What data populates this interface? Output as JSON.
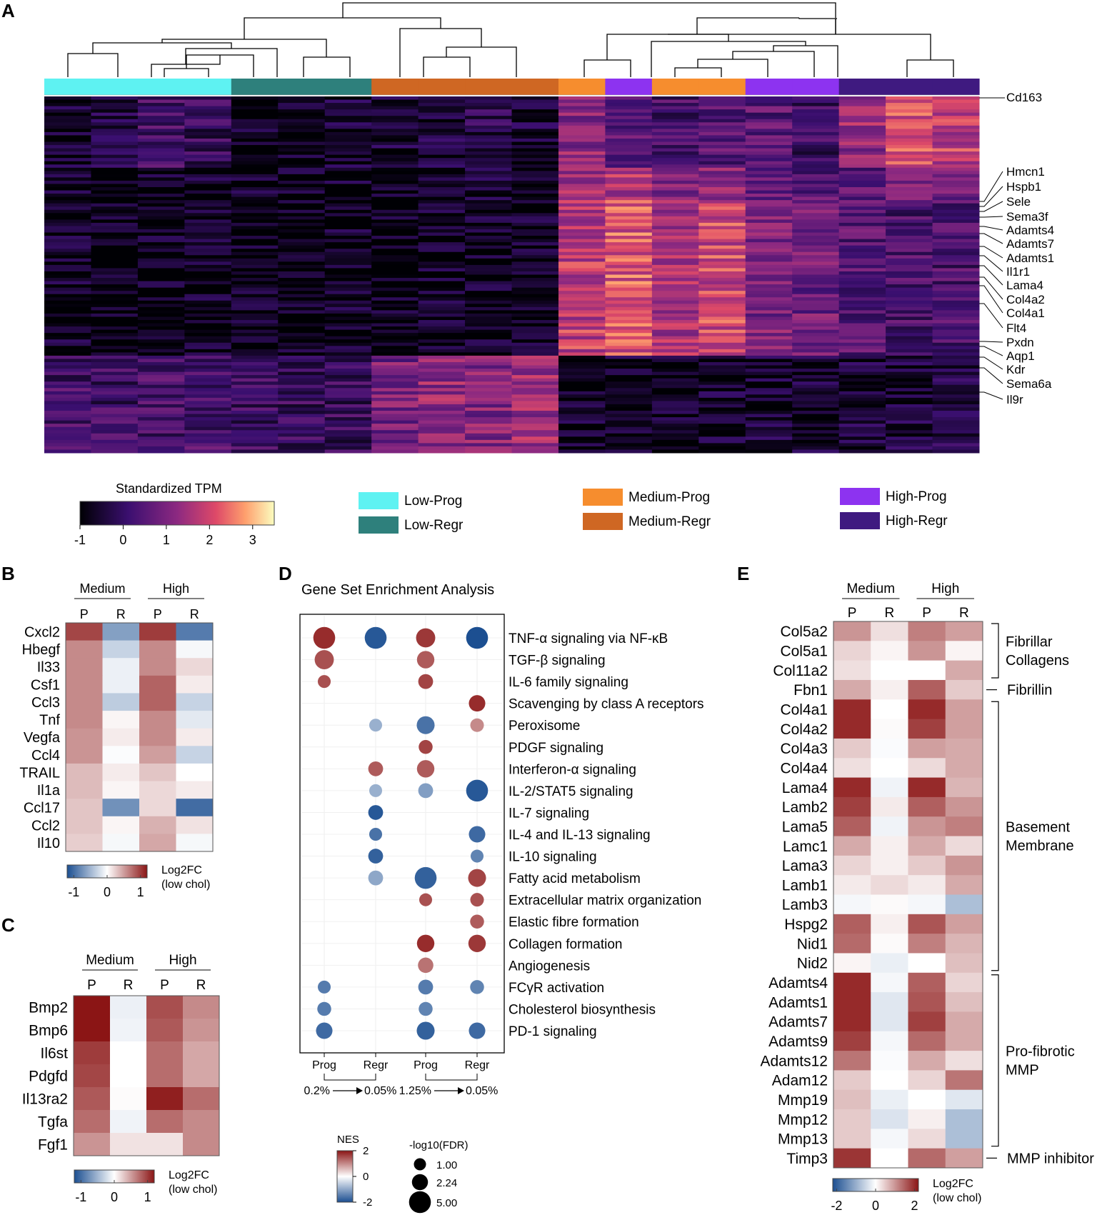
{
  "panels": {
    "A": "A",
    "B": "B",
    "C": "C",
    "D": "D",
    "E": "E"
  },
  "chart_data": [
    {
      "panel": "A",
      "type": "heatmap",
      "title": "",
      "colorbar": {
        "title": "Standardized TPM",
        "ticks": [
          "-1",
          "0",
          "1",
          "2",
          "3"
        ],
        "range": [
          -1,
          3.5
        ]
      },
      "groups": [
        {
          "name": "Low-Prog",
          "color": "#5ef2f2"
        },
        {
          "name": "Low-Regr",
          "color": "#2e807c"
        },
        {
          "name": "Medium-Prog",
          "color": "#f68d2e"
        },
        {
          "name": "Medium-Regr",
          "color": "#cf6723"
        },
        {
          "name": "High-Prog",
          "color": "#8d33f0"
        },
        {
          "name": "High-Regr",
          "color": "#3f1a80"
        }
      ],
      "sample_groups": [
        "Low-Prog",
        "Low-Prog",
        "Low-Prog",
        "Low-Prog",
        "Low-Regr",
        "Low-Regr",
        "Low-Regr",
        "Medium-Regr",
        "Medium-Regr",
        "Medium-Regr",
        "Medium-Regr",
        "Medium-Prog",
        "High-Prog",
        "Medium-Prog",
        "Medium-Prog",
        "High-Prog",
        "High-Prog",
        "High-Regr",
        "High-Regr",
        "High-Regr"
      ],
      "gene_labels": [
        "Cd163",
        "Hmcn1",
        "Hspb1",
        "Sele",
        "Sema3f",
        "Adamts4",
        "Adamts7",
        "Adamts1",
        "Il1r1",
        "Lama4",
        "Col4a2",
        "Col4a1",
        "Flt4",
        "Pxdn",
        "Aqp1",
        "Kdr",
        "Sema6a",
        "Il9r"
      ],
      "row_blocks": [
        {
          "rows": 22,
          "values": [
            -0.6,
            -0.2,
            0.2,
            0.0,
            -0.7,
            -0.7,
            -0.5,
            -0.5,
            -0.4,
            -0.2,
            -0.4,
            1.2,
            0.6,
            0.2,
            0.5,
            0.5,
            0.1,
            1.3,
            2.2,
            1.8
          ]
        },
        {
          "rows": 10,
          "values": [
            -0.7,
            -0.7,
            -0.6,
            -0.6,
            -0.7,
            -0.8,
            -0.7,
            -0.6,
            -0.6,
            -0.6,
            -0.6,
            1.4,
            1.6,
            0.9,
            1.2,
            0.7,
            0.5,
            0.6,
            0.9,
            0.9
          ]
        },
        {
          "rows": 48,
          "values": [
            -0.7,
            -0.8,
            -0.7,
            -0.7,
            -0.8,
            -0.8,
            -0.7,
            -0.8,
            -0.7,
            -0.7,
            -0.7,
            1.8,
            2.2,
            1.6,
            2.0,
            1.0,
            0.8,
            0.5,
            0.3,
            0.3
          ]
        },
        {
          "rows": 30,
          "values": [
            0.2,
            0.1,
            0.2,
            0.3,
            0.1,
            0.0,
            0.0,
            0.9,
            1.3,
            1.1,
            1.4,
            -0.7,
            -0.6,
            -0.7,
            -0.6,
            -0.5,
            -0.6,
            -0.5,
            -0.4,
            -0.3
          ]
        }
      ],
      "dendrogram": "hierarchical clustering of 20 samples"
    },
    {
      "panel": "B",
      "type": "heatmap",
      "column_groups": [
        "Medium",
        "High"
      ],
      "columns": [
        "P",
        "R",
        "P",
        "R"
      ],
      "rows": [
        "Cxcl2",
        "Hbegf",
        "Il33",
        "Csf1",
        "Ccl3",
        "Tnf",
        "Vegfa",
        "Ccl4",
        "TRAIL",
        "Il1a",
        "Ccl17",
        "Ccl2",
        "Il10"
      ],
      "values": [
        [
          0.95,
          -0.65,
          1.0,
          -0.9
        ],
        [
          0.6,
          -0.3,
          0.6,
          -0.05
        ],
        [
          0.6,
          -0.1,
          0.6,
          0.2
        ],
        [
          0.6,
          -0.1,
          0.8,
          0.1
        ],
        [
          0.6,
          -0.35,
          0.8,
          -0.3
        ],
        [
          0.6,
          0.05,
          0.6,
          -0.15
        ],
        [
          0.55,
          0.1,
          0.6,
          0.1
        ],
        [
          0.55,
          -0.02,
          0.5,
          -0.3
        ],
        [
          0.35,
          0.1,
          0.3,
          0.0
        ],
        [
          0.35,
          0.05,
          0.2,
          0.1
        ],
        [
          0.3,
          -0.75,
          0.2,
          -1.0
        ],
        [
          0.3,
          0.05,
          0.4,
          0.15
        ],
        [
          0.25,
          -0.05,
          0.45,
          -0.05
        ]
      ],
      "colorbar": {
        "title": "Log2FC",
        "subtitle": "(low chol)",
        "ticks": [
          "-1",
          "0",
          "1"
        ],
        "range": [
          -1.2,
          1.2
        ]
      }
    },
    {
      "panel": "C",
      "type": "heatmap",
      "column_groups": [
        "Medium",
        "High"
      ],
      "columns": [
        "P",
        "R",
        "P",
        "R"
      ],
      "rows": [
        "Bmp2",
        "Bmp6",
        "Il6st",
        "Pdgfd",
        "Il13ra2",
        "Tgfa",
        "Fgf1"
      ],
      "values": [
        [
          1.2,
          -0.1,
          0.9,
          0.6
        ],
        [
          1.2,
          -0.08,
          0.85,
          0.55
        ],
        [
          1.0,
          0.0,
          0.75,
          0.45
        ],
        [
          0.95,
          0.0,
          0.75,
          0.45
        ],
        [
          0.85,
          0.02,
          1.15,
          0.75
        ],
        [
          0.75,
          -0.08,
          0.75,
          0.6
        ],
        [
          0.55,
          0.15,
          0.15,
          0.6
        ]
      ],
      "colorbar": {
        "title": "Log2FC",
        "subtitle": "(low chol)",
        "ticks": [
          "-1",
          "0",
          "1"
        ],
        "range": [
          -1.2,
          1.2
        ]
      }
    },
    {
      "panel": "D",
      "type": "scatter",
      "title": "Gene Set Enrichment Analysis",
      "columns": [
        "Prog",
        "Regr",
        "Prog",
        "Regr"
      ],
      "thresholds": [
        {
          "from": "0.2%",
          "to": "0.05%"
        },
        {
          "from": "1.25%",
          "to": "0.05%"
        }
      ],
      "pathways": [
        "TNF-α signaling via NF-κB",
        "TGF-β signaling",
        "IL-6 family signaling",
        "Scavenging by class A receptors",
        "Peroxisome",
        "PDGF signaling",
        "Interferon-α signaling",
        "IL-2/STAT5 signaling",
        "IL-7 signaling",
        "IL-4 and IL-13 signaling",
        "IL-10 signaling",
        "Fatty acid metabolism",
        "Extracellular matrix organization",
        "Elastic fibre formation",
        "Collagen formation",
        "Angiogenesis",
        "FCγR activation",
        "Cholesterol biosynthesis",
        "PD-1 signaling"
      ],
      "points": [
        {
          "pathway": 0,
          "col": 0,
          "nes": 1.8,
          "size": 5.0
        },
        {
          "pathway": 0,
          "col": 1,
          "nes": -1.9,
          "size": 5.0
        },
        {
          "pathway": 0,
          "col": 2,
          "nes": 1.7,
          "size": 3.6
        },
        {
          "pathway": 0,
          "col": 3,
          "nes": -2.0,
          "size": 5.0
        },
        {
          "pathway": 1,
          "col": 0,
          "nes": 1.5,
          "size": 3.6
        },
        {
          "pathway": 1,
          "col": 2,
          "nes": 1.4,
          "size": 2.8
        },
        {
          "pathway": 2,
          "col": 0,
          "nes": 1.5,
          "size": 1.2
        },
        {
          "pathway": 2,
          "col": 2,
          "nes": 1.6,
          "size": 1.8
        },
        {
          "pathway": 3,
          "col": 3,
          "nes": 1.8,
          "size": 2.4
        },
        {
          "pathway": 4,
          "col": 1,
          "nes": -0.9,
          "size": 1.2
        },
        {
          "pathway": 4,
          "col": 2,
          "nes": -1.6,
          "size": 3.0
        },
        {
          "pathway": 4,
          "col": 3,
          "nes": 1.0,
          "size": 1.4
        },
        {
          "pathway": 5,
          "col": 2,
          "nes": 1.6,
          "size": 1.5
        },
        {
          "pathway": 6,
          "col": 1,
          "nes": 1.4,
          "size": 1.8
        },
        {
          "pathway": 6,
          "col": 2,
          "nes": 1.4,
          "size": 2.8
        },
        {
          "pathway": 7,
          "col": 1,
          "nes": -0.9,
          "size": 1.2
        },
        {
          "pathway": 7,
          "col": 2,
          "nes": -1.1,
          "size": 1.8
        },
        {
          "pathway": 7,
          "col": 3,
          "nes": -1.9,
          "size": 5.0
        },
        {
          "pathway": 8,
          "col": 1,
          "nes": -1.9,
          "size": 1.8
        },
        {
          "pathway": 9,
          "col": 1,
          "nes": -1.6,
          "size": 1.2
        },
        {
          "pathway": 9,
          "col": 3,
          "nes": -1.7,
          "size": 2.4
        },
        {
          "pathway": 10,
          "col": 1,
          "nes": -1.8,
          "size": 1.8
        },
        {
          "pathway": 10,
          "col": 3,
          "nes": -1.4,
          "size": 1.2
        },
        {
          "pathway": 11,
          "col": 1,
          "nes": -1.0,
          "size": 1.8
        },
        {
          "pathway": 11,
          "col": 2,
          "nes": -1.8,
          "size": 5.0
        },
        {
          "pathway": 11,
          "col": 3,
          "nes": 1.6,
          "size": 3.0
        },
        {
          "pathway": 12,
          "col": 2,
          "nes": 1.5,
          "size": 1.2
        },
        {
          "pathway": 12,
          "col": 3,
          "nes": 1.5,
          "size": 1.4
        },
        {
          "pathway": 13,
          "col": 3,
          "nes": 1.4,
          "size": 1.5
        },
        {
          "pathway": 14,
          "col": 2,
          "nes": 1.8,
          "size": 2.8
        },
        {
          "pathway": 14,
          "col": 3,
          "nes": 1.7,
          "size": 2.8
        },
        {
          "pathway": 15,
          "col": 2,
          "nes": 1.2,
          "size": 2.0
        },
        {
          "pathway": 16,
          "col": 0,
          "nes": -1.5,
          "size": 1.2
        },
        {
          "pathway": 16,
          "col": 2,
          "nes": -1.5,
          "size": 1.8
        },
        {
          "pathway": 16,
          "col": 3,
          "nes": -1.4,
          "size": 1.5
        },
        {
          "pathway": 17,
          "col": 0,
          "nes": -1.5,
          "size": 1.5
        },
        {
          "pathway": 17,
          "col": 2,
          "nes": -1.4,
          "size": 1.5
        },
        {
          "pathway": 18,
          "col": 0,
          "nes": -1.7,
          "size": 2.4
        },
        {
          "pathway": 18,
          "col": 2,
          "nes": -1.8,
          "size": 3.0
        },
        {
          "pathway": 18,
          "col": 3,
          "nes": -1.7,
          "size": 2.4
        }
      ],
      "nes_legend": {
        "title": "NES",
        "ticks": [
          "2",
          "0",
          "-2"
        ],
        "range": [
          -2,
          2
        ]
      },
      "size_legend": {
        "title": "-log10(FDR)",
        "values": [
          1.0,
          2.24,
          5.0
        ],
        "labels": [
          "1.00",
          "2.24",
          "5.00"
        ]
      }
    },
    {
      "panel": "E",
      "type": "heatmap",
      "column_groups": [
        "Medium",
        "High"
      ],
      "columns": [
        "P",
        "R",
        "P",
        "R"
      ],
      "rows": [
        "Col5a2",
        "Col5a1",
        "Col11a2",
        "Fbn1",
        "Col4a1",
        "Col4a2",
        "Col4a3",
        "Col4a4",
        "Lama4",
        "Lamb2",
        "Lama5",
        "Lamc1",
        "Lama3",
        "Lamb1",
        "Lamb3",
        "Hspg2",
        "Nid1",
        "Nid2",
        "Adamts4",
        "Adamts1",
        "Adamts7",
        "Adamts9",
        "Adamts12",
        "Adam12",
        "Mmp19",
        "Mmp12",
        "Mmp13",
        "Timp3"
      ],
      "values": [
        [
          1.0,
          0.3,
          1.2,
          0.9
        ],
        [
          0.4,
          0.1,
          1.0,
          0.1
        ],
        [
          0.3,
          0.0,
          0.0,
          0.8
        ],
        [
          0.8,
          0.15,
          1.5,
          0.5
        ],
        [
          2.0,
          0.0,
          2.0,
          0.9
        ],
        [
          2.0,
          0.05,
          1.8,
          0.9
        ],
        [
          0.5,
          -0.05,
          0.9,
          0.8
        ],
        [
          0.3,
          0.0,
          0.35,
          0.8
        ],
        [
          2.0,
          -0.15,
          2.0,
          0.7
        ],
        [
          1.8,
          0.2,
          1.5,
          1.0
        ],
        [
          1.5,
          -0.15,
          1.0,
          1.2
        ],
        [
          0.8,
          0.15,
          0.8,
          0.35
        ],
        [
          0.4,
          0.15,
          0.5,
          1.0
        ],
        [
          0.2,
          0.35,
          0.2,
          0.8
        ],
        [
          -0.1,
          0.05,
          -0.1,
          -0.8
        ],
        [
          1.5,
          0.15,
          1.6,
          0.9
        ],
        [
          1.4,
          0.05,
          1.2,
          0.7
        ],
        [
          0.1,
          -0.2,
          0.0,
          0.6
        ],
        [
          2.0,
          -0.1,
          1.5,
          0.4
        ],
        [
          2.0,
          -0.3,
          1.6,
          0.6
        ],
        [
          2.0,
          -0.3,
          1.8,
          0.8
        ],
        [
          1.8,
          -0.1,
          1.4,
          0.8
        ],
        [
          1.3,
          -0.05,
          0.8,
          0.3
        ],
        [
          0.5,
          0.0,
          0.4,
          1.3
        ],
        [
          0.6,
          -0.2,
          0.0,
          -0.3
        ],
        [
          0.5,
          -0.35,
          0.15,
          -0.8
        ],
        [
          0.5,
          -0.1,
          0.35,
          -0.8
        ],
        [
          1.9,
          0.0,
          1.4,
          0.9
        ]
      ],
      "brackets": [
        {
          "label": [
            "Fibrillar",
            "Collagens"
          ],
          "from": 0,
          "to": 2
        },
        {
          "label": [
            "Fibrillin"
          ],
          "from": 3,
          "to": 3
        },
        {
          "label": [
            "Basement",
            "Membrane"
          ],
          "from": 4,
          "to": 17
        },
        {
          "label": [
            "Pro-fibrotic",
            "MMP"
          ],
          "from": 18,
          "to": 26
        },
        {
          "label": [
            "MMP inhibitor"
          ],
          "from": 27,
          "to": 27
        }
      ],
      "colorbar": {
        "title": "Log2FC",
        "subtitle": "(low chol)",
        "ticks": [
          "-2",
          "0",
          "2"
        ],
        "range": [
          -2.2,
          2.2
        ]
      }
    }
  ]
}
